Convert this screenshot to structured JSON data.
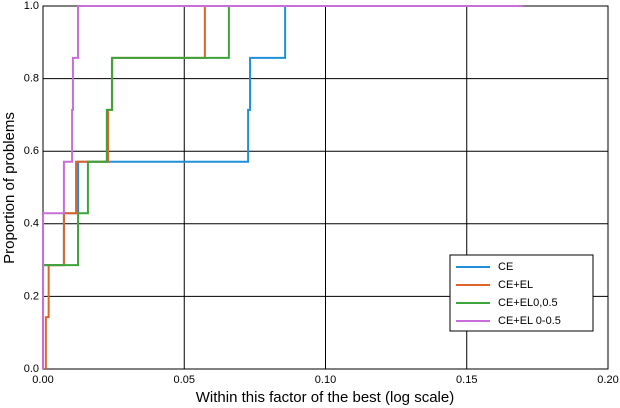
{
  "chart_data": {
    "type": "step",
    "x_label": "Within this factor of the best (log scale)",
    "y_label": "Proportion of problems",
    "xlim": [
      0,
      0.2
    ],
    "ylim": [
      0,
      1
    ],
    "xticks": [
      {
        "value": 0,
        "label": "0.00"
      },
      0.05,
      {
        "value": 0.1,
        "label": "0.10"
      },
      0.15,
      {
        "value": 0.2,
        "label": "0.20"
      }
    ],
    "yticks": [
      {
        "value": 0,
        "label": "0.0"
      },
      0.2,
      0.4,
      0.6,
      0.8,
      {
        "value": 1,
        "label": "1.0"
      }
    ],
    "grid": true,
    "legend": "lower right",
    "series": [
      {
        "name": "CE",
        "color": "#1f8fdb",
        "x": [
          0,
          0.0074,
          0.0124,
          0.0726,
          0.0733,
          0.0857
        ],
        "values": [
          0.286,
          0.429,
          0.571,
          0.714,
          0.857,
          1.0
        ]
      },
      {
        "name": "CE+EL",
        "color": "#e0632a",
        "x": [
          0.001,
          0.002,
          0.0074,
          0.0117,
          0.023,
          0.0245,
          0.0573
        ],
        "values": [
          0.143,
          0.286,
          0.429,
          0.571,
          0.714,
          0.857,
          1.0
        ]
      },
      {
        "name": "CE+EL0,0.5",
        "color": "#3ca43a",
        "x": [
          0,
          0.0124,
          0.0159,
          0.0226,
          0.0244,
          0.0658
        ],
        "values": [
          0.286,
          0.429,
          0.571,
          0.714,
          0.857,
          1.0
        ]
      },
      {
        "name": "CE+EL 0-0.5",
        "color": "#c86ed8",
        "x": [
          0,
          0.0074,
          0.0103,
          0.0106,
          0.0124,
          0.17
        ],
        "values": [
          0.429,
          0.571,
          0.714,
          0.857,
          1.0,
          1.0
        ]
      }
    ]
  }
}
